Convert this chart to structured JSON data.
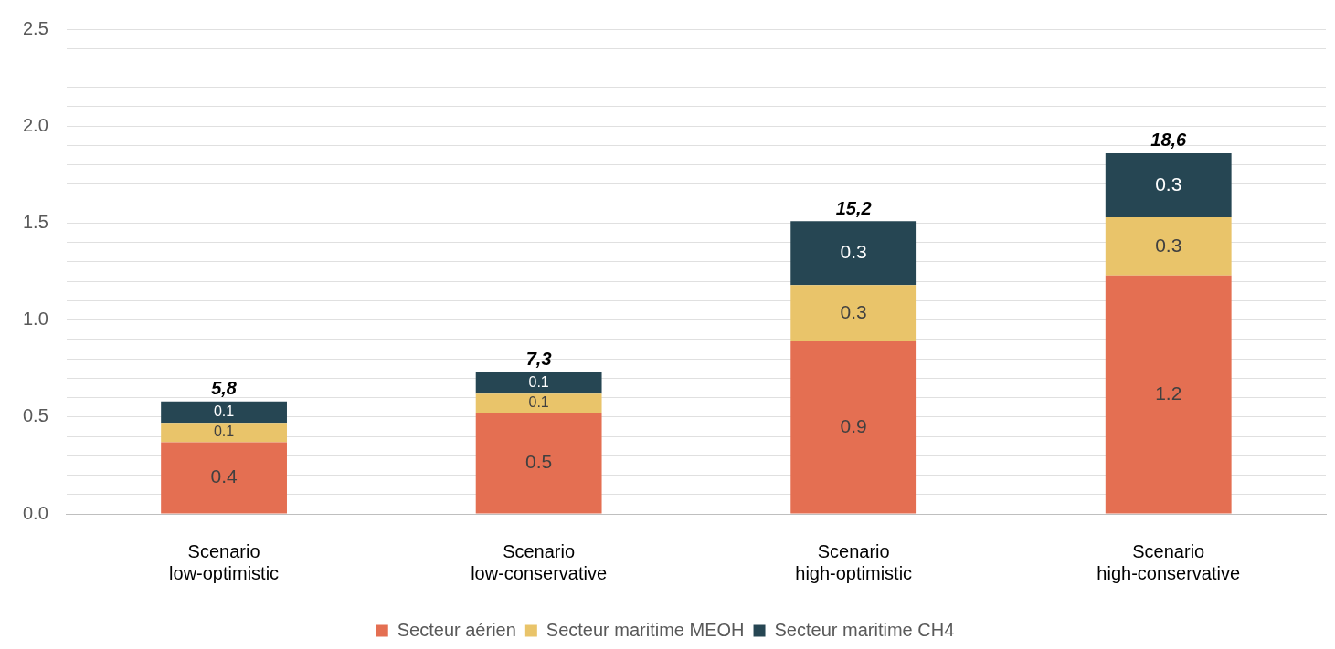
{
  "chart_data": {
    "type": "bar",
    "stacked": true,
    "categories": [
      "Scenario low-optimistic",
      "Scenario low-conservative",
      "Scenario high-optimistic",
      "Scenario high-conservative"
    ],
    "series": [
      {
        "name": "Secteur aérien",
        "color": "#e46f52",
        "values": [
          0.37,
          0.52,
          0.89,
          1.23
        ],
        "value_labels": [
          "0.4",
          "0.5",
          "0.9",
          "1.2"
        ]
      },
      {
        "name": "Secteur maritime MEOH",
        "color": "#e9c46a",
        "values": [
          0.1,
          0.1,
          0.29,
          0.3
        ],
        "value_labels": [
          "0.1",
          "0.1",
          "0.3",
          "0.3"
        ]
      },
      {
        "name": "Secteur maritime CH4",
        "color": "#264653",
        "values": [
          0.11,
          0.11,
          0.33,
          0.33
        ],
        "value_labels": [
          "0.1",
          "0.1",
          "0.3",
          "0.3"
        ]
      }
    ],
    "annotations": [
      {
        "text": "5,8",
        "x": "Scenario low-optimistic",
        "y": 0.58
      },
      {
        "text": "7,3",
        "x": "Scenario low-conservative",
        "y": 0.73
      },
      {
        "text": "15,2",
        "x": "Scenario high-optimistic",
        "y": 1.51
      },
      {
        "text": "18,6",
        "x": "Scenario high-conservative",
        "y": 1.86
      }
    ],
    "ylim": [
      0,
      2.5
    ],
    "yticks": [
      "0.0",
      {
        "value": 0.1,
        "label": null
      },
      {
        "value": 0.2,
        "label": null
      },
      {
        "value": 0.3,
        "label": null
      },
      {
        "value": 0.4,
        "label": null
      },
      {
        "value": 0.5,
        "label": "0.5"
      },
      {
        "value": 0.6,
        "label": null
      },
      {
        "value": 0.7,
        "label": null
      },
      {
        "value": 0.8,
        "label": null
      },
      {
        "value": 0.9,
        "label": null
      },
      {
        "value": 1.0,
        "label": "1.0"
      },
      {
        "value": 1.1,
        "label": null
      },
      {
        "value": 1.2,
        "label": null
      },
      {
        "value": 1.3,
        "label": null
      },
      {
        "value": 1.4,
        "label": null
      },
      {
        "value": 1.5,
        "label": "1.5"
      },
      {
        "value": 1.6,
        "label": null
      },
      {
        "value": 1.7,
        "label": null
      },
      {
        "value": 1.8,
        "label": null
      },
      {
        "value": 1.9,
        "label": null
      },
      {
        "value": 2.0,
        "label": "2.0"
      },
      {
        "value": 2.1,
        "label": null
      },
      {
        "value": 2.2,
        "label": null
      },
      {
        "value": 2.3,
        "label": null
      },
      {
        "value": 2.4,
        "label": null
      },
      {
        "value": 2.5,
        "label": "2.5"
      }
    ],
    "grid": "y",
    "legend": "bottom"
  }
}
